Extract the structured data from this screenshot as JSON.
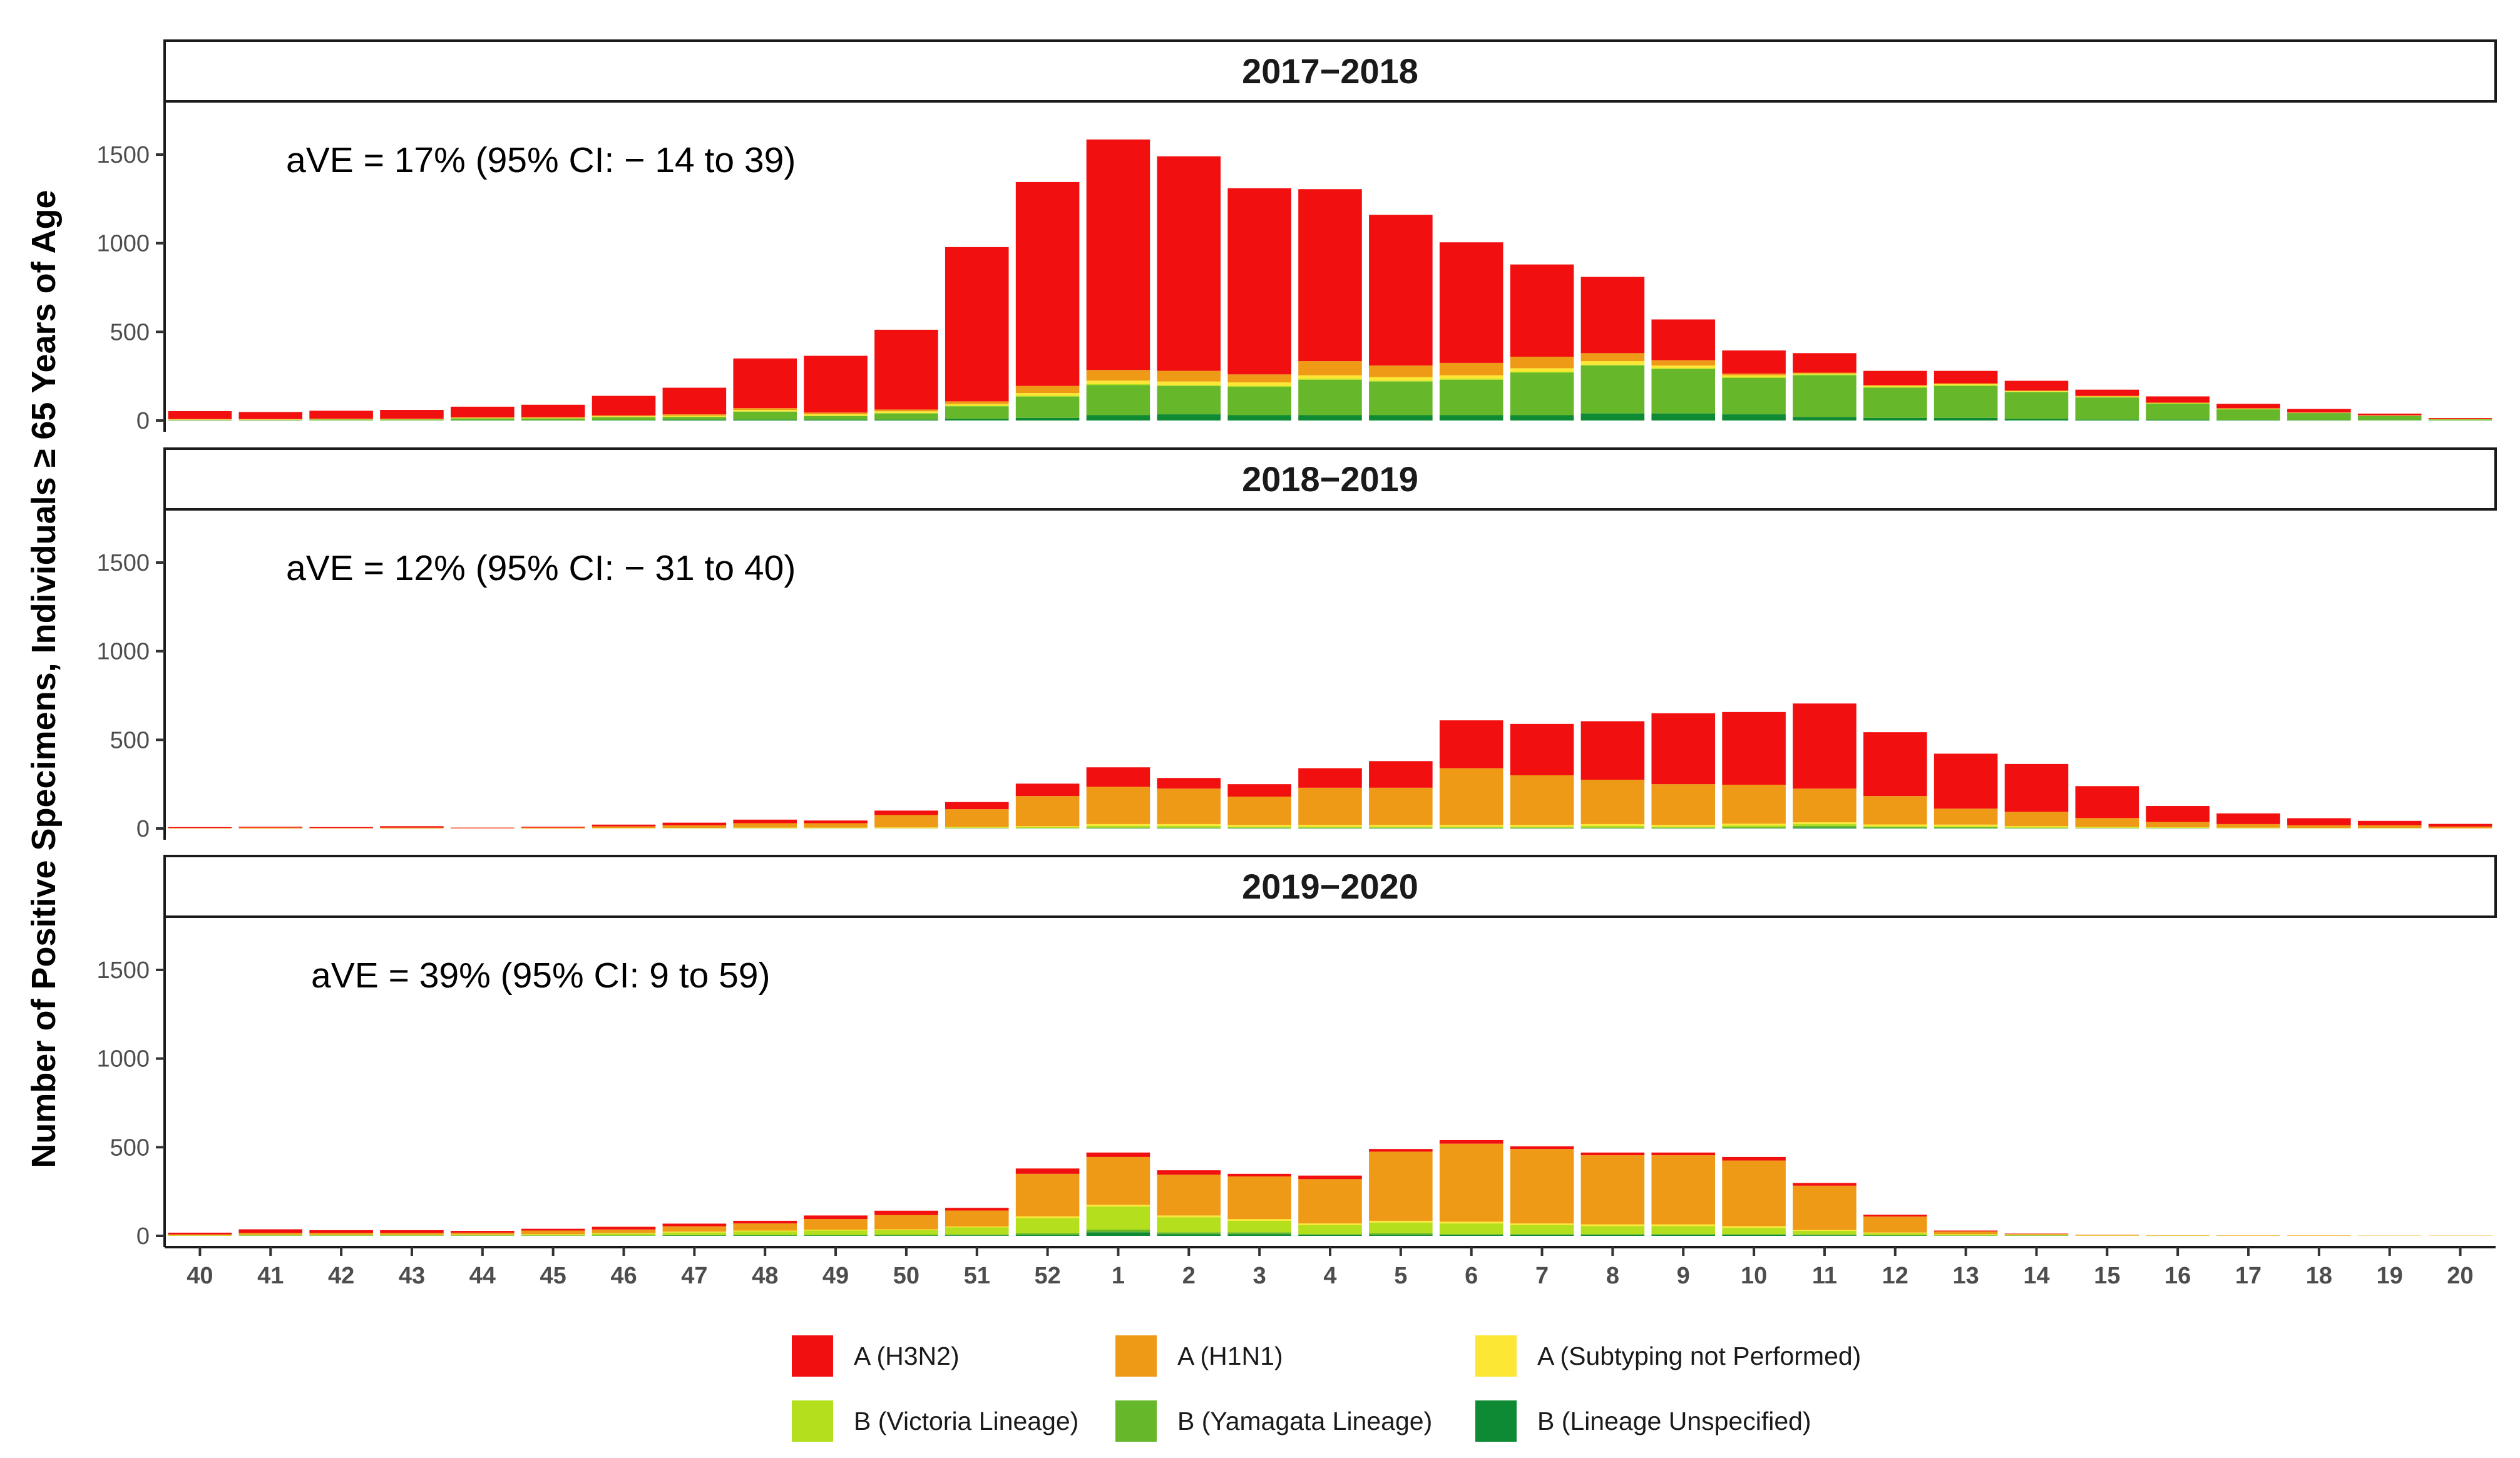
{
  "chart_data": {
    "type": "bar",
    "stacked": true,
    "ylabel": "Number of Positive Specimens, Individuals ≥ 65 Years of Age",
    "xlabel": "",
    "ylim": [
      0,
      1800
    ],
    "yticks": [
      0,
      500,
      1000,
      1500
    ],
    "categories": [
      "40",
      "41",
      "42",
      "43",
      "44",
      "45",
      "46",
      "47",
      "48",
      "49",
      "50",
      "51",
      "52",
      "1",
      "2",
      "3",
      "4",
      "5",
      "6",
      "7",
      "8",
      "9",
      "10",
      "11",
      "12",
      "13",
      "14",
      "15",
      "16",
      "17",
      "18",
      "19",
      "20"
    ],
    "legend": [
      {
        "name": "A (H3N2)",
        "color": "#f20f0f"
      },
      {
        "name": "A (H1N1)",
        "color": "#ee9a17"
      },
      {
        "name": "A (Subtyping not Performed)",
        "color": "#fbe734"
      },
      {
        "name": "B (Victoria Lineage)",
        "color": "#b3df1c"
      },
      {
        "name": "B (Yamagata Lineage)",
        "color": "#66b72a"
      },
      {
        "name": "B (Lineage Unspecified)",
        "color": "#0f8a34"
      }
    ],
    "grid": false,
    "legend_position": "bottom",
    "panels": [
      {
        "title": "2017−2018",
        "annotation": "aVE = 17% (95% CI: − 14 to 39)",
        "series": [
          {
            "name": "A (H3N2)",
            "values": [
              45,
              40,
              45,
              50,
              60,
              70,
              110,
              150,
              280,
              320,
              450,
              870,
              1150,
              1300,
              1210,
              1050,
              970,
              850,
              680,
              520,
              430,
              230,
              130,
              110,
              80,
              70,
              55,
              35,
              35,
              25,
              20,
              10,
              5
            ]
          },
          {
            "name": "A (H1N1)",
            "values": [
              2,
              2,
              2,
              2,
              3,
              4,
              5,
              8,
              10,
              10,
              10,
              15,
              40,
              60,
              60,
              45,
              80,
              65,
              70,
              65,
              45,
              30,
              10,
              5,
              5,
              5,
              3,
              3,
              2,
              2,
              1,
              1,
              1
            ]
          },
          {
            "name": "A (Subtyping not Performed)",
            "values": [
              2,
              2,
              2,
              2,
              3,
              3,
              5,
              6,
              8,
              8,
              10,
              10,
              15,
              20,
              20,
              20,
              20,
              20,
              20,
              20,
              20,
              15,
              10,
              5,
              5,
              5,
              3,
              3,
              2,
              2,
              1,
              1,
              1
            ]
          },
          {
            "name": "B (Victoria Lineage)",
            "values": [
              0,
              0,
              0,
              0,
              0,
              0,
              1,
              1,
              2,
              2,
              2,
              3,
              5,
              5,
              5,
              5,
              5,
              5,
              5,
              5,
              5,
              5,
              5,
              5,
              5,
              5,
              3,
              3,
              2,
              2,
              1,
              1,
              1
            ]
          },
          {
            "name": "B (Yamagata Lineage)",
            "values": [
              3,
              3,
              5,
              5,
              10,
              10,
              15,
              15,
              45,
              20,
              35,
              70,
              120,
              170,
              160,
              160,
              200,
              190,
              200,
              240,
              270,
              250,
              205,
              235,
              170,
              180,
              150,
              125,
              90,
              60,
              40,
              25,
              5
            ]
          },
          {
            "name": "B (Lineage Unspecified)",
            "values": [
              1,
              1,
              1,
              1,
              2,
              2,
              3,
              5,
              5,
              5,
              5,
              10,
              15,
              30,
              35,
              30,
              30,
              30,
              30,
              30,
              40,
              40,
              35,
              20,
              15,
              15,
              10,
              5,
              5,
              3,
              2,
              1,
              1
            ]
          }
        ]
      },
      {
        "title": "2018−2019",
        "annotation": "aVE = 12% (95% CI: − 31 to 40)",
        "series": [
          {
            "name": "A (H3N2)",
            "values": [
              5,
              5,
              5,
              8,
              3,
              5,
              10,
              15,
              20,
              15,
              25,
              40,
              70,
              110,
              60,
              70,
              110,
              150,
              270,
              290,
              330,
              400,
              410,
              480,
              360,
              310,
              270,
              180,
              90,
              60,
              40,
              25,
              15
            ]
          },
          {
            "name": "A (H1N1)",
            "values": [
              3,
              5,
              3,
              5,
              2,
              5,
              10,
              15,
              25,
              25,
              70,
              100,
              170,
              210,
              200,
              160,
              210,
              210,
              320,
              280,
              250,
              230,
              220,
              190,
              160,
              90,
              80,
              50,
              30,
              20,
              15,
              15,
              10
            ]
          },
          {
            "name": "A (Subtyping not Performed)",
            "values": [
              0,
              0,
              0,
              0,
              0,
              0,
              1,
              1,
              2,
              2,
              3,
              3,
              5,
              10,
              10,
              10,
              10,
              10,
              10,
              10,
              10,
              10,
              10,
              10,
              10,
              10,
              5,
              3,
              2,
              2,
              1,
              1,
              1
            ]
          },
          {
            "name": "B (Victoria Lineage)",
            "values": [
              0,
              0,
              0,
              0,
              0,
              0,
              1,
              1,
              2,
              2,
              2,
              3,
              5,
              10,
              10,
              5,
              5,
              5,
              5,
              5,
              10,
              5,
              10,
              10,
              5,
              5,
              5,
              3,
              2,
              2,
              1,
              1,
              0
            ]
          },
          {
            "name": "B (Yamagata Lineage)",
            "values": [
              0,
              0,
              0,
              0,
              0,
              0,
              0,
              1,
              1,
              1,
              1,
              2,
              2,
              3,
              3,
              3,
              3,
              3,
              3,
              3,
              3,
              3,
              5,
              10,
              5,
              5,
              3,
              2,
              2,
              1,
              1,
              1,
              0
            ]
          },
          {
            "name": "B (Lineage Unspecified)",
            "values": [
              0,
              0,
              0,
              0,
              0,
              0,
              0,
              0,
              0,
              0,
              0,
              1,
              1,
              2,
              2,
              2,
              2,
              2,
              2,
              2,
              2,
              2,
              2,
              5,
              3,
              2,
              1,
              1,
              1,
              0,
              0,
              0,
              0
            ]
          }
        ]
      },
      {
        "title": "2019−2020",
        "annotation": "aVE = 39% (95% CI: 9 to 59)",
        "series": [
          {
            "name": "A (H3N2)",
            "values": [
              10,
              20,
              15,
              15,
              10,
              10,
              15,
              15,
              15,
              20,
              25,
              15,
              30,
              25,
              25,
              15,
              20,
              15,
              20,
              15,
              15,
              15,
              20,
              15,
              10,
              5,
              2,
              1,
              0,
              0,
              0,
              0,
              0
            ]
          },
          {
            "name": "A (H1N1)",
            "values": [
              5,
              10,
              10,
              10,
              10,
              20,
              20,
              30,
              40,
              60,
              80,
              90,
              240,
              270,
              230,
              240,
              250,
              390,
              440,
              420,
              390,
              390,
              370,
              250,
              90,
              15,
              5,
              3,
              2,
              2,
              2,
              1,
              1
            ]
          },
          {
            "name": "A (Subtyping not Performed)",
            "values": [
              1,
              2,
              2,
              2,
              2,
              3,
              3,
              5,
              5,
              5,
              5,
              5,
              10,
              10,
              10,
              10,
              10,
              10,
              10,
              10,
              10,
              10,
              10,
              5,
              5,
              3,
              2,
              1,
              1,
              1,
              1,
              1,
              1
            ]
          },
          {
            "name": "B (Victoria Lineage)",
            "values": [
              2,
              3,
              3,
              3,
              4,
              5,
              10,
              15,
              20,
              25,
              25,
              40,
              85,
              130,
              85,
              65,
              50,
              60,
              60,
              50,
              45,
              45,
              35,
              20,
              10,
              5,
              2,
              1,
              1,
              0,
              0,
              0,
              0
            ]
          },
          {
            "name": "B (Yamagata Lineage)",
            "values": [
              0,
              1,
              1,
              1,
              1,
              1,
              2,
              2,
              3,
              3,
              5,
              5,
              10,
              15,
              10,
              10,
              5,
              10,
              5,
              5,
              5,
              5,
              5,
              5,
              2,
              1,
              1,
              0,
              0,
              0,
              0,
              0,
              0
            ]
          },
          {
            "name": "B (Lineage Unspecified)",
            "values": [
              0,
              1,
              1,
              1,
              1,
              1,
              1,
              2,
              2,
              2,
              2,
              3,
              5,
              20,
              10,
              10,
              5,
              5,
              5,
              5,
              5,
              5,
              5,
              3,
              2,
              1,
              1,
              0,
              0,
              0,
              0,
              0,
              0
            ]
          }
        ]
      }
    ]
  }
}
